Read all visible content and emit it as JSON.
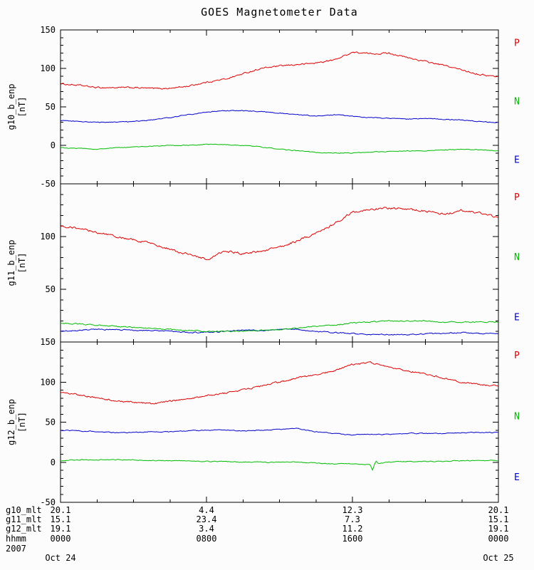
{
  "title": "GOES Magnetometer Data",
  "chart_data": [
    {
      "type": "line",
      "ylabel": "g10_b_enp",
      "yunits": "[nT]",
      "ylim": [
        -50,
        150
      ],
      "ytick_step": 50,
      "ytick_minor_step": 10,
      "ytick_labels": [
        "150",
        "100",
        "50",
        "0",
        "-50"
      ],
      "xlim_hours": [
        0,
        24
      ],
      "xticks_hours": [
        0,
        8,
        16,
        24
      ],
      "legend_position": "right",
      "x_hours": [
        0,
        1,
        2,
        3,
        4,
        5,
        6,
        7,
        8,
        9,
        10,
        11,
        12,
        13,
        14,
        15,
        16,
        17,
        18,
        19,
        20,
        21,
        22,
        23,
        24
      ],
      "series": [
        {
          "name": "P",
          "color": "#dd0000",
          "values": [
            80,
            78,
            75,
            75,
            75,
            74,
            74,
            77,
            82,
            86,
            93,
            100,
            103,
            105,
            107,
            111,
            121,
            119,
            120,
            114,
            109,
            104,
            98,
            92,
            89
          ]
        },
        {
          "name": "N",
          "color": "#00bb00",
          "values": [
            -3,
            -4,
            -5,
            -3,
            -2,
            -1,
            0,
            0,
            1,
            1,
            0,
            -2,
            -5,
            -7,
            -9,
            -10,
            -10,
            -9,
            -8,
            -7,
            -7,
            -6,
            -5,
            -6,
            -7
          ]
        },
        {
          "name": "E",
          "color": "#0000cc",
          "values": [
            32,
            31,
            30,
            30,
            31,
            33,
            36,
            40,
            43,
            45,
            45,
            44,
            42,
            40,
            38,
            40,
            38,
            36,
            35,
            34,
            35,
            34,
            33,
            31,
            30
          ]
        }
      ]
    },
    {
      "type": "line",
      "ylabel": "g11_b_enp",
      "yunits": "[nT]",
      "ylim": [
        0,
        150
      ],
      "ytick_step": 50,
      "ytick_minor_step": 10,
      "ytick_labels": [
        "100",
        "50"
      ],
      "xlim_hours": [
        0,
        24
      ],
      "xticks_hours": [
        0,
        8,
        16,
        24
      ],
      "legend_position": "right",
      "x_hours": [
        0,
        1,
        2,
        3,
        4,
        5,
        6,
        7,
        8,
        9,
        10,
        11,
        12,
        13,
        14,
        15,
        16,
        17,
        18,
        19,
        20,
        21,
        22,
        23,
        24
      ],
      "series": [
        {
          "name": "P",
          "color": "#dd0000",
          "values": [
            110,
            108,
            104,
            100,
            97,
            93,
            88,
            83,
            78,
            86,
            84,
            86,
            90,
            96,
            103,
            112,
            123,
            126,
            127,
            126,
            124,
            121,
            125,
            122,
            118
          ]
        },
        {
          "name": "N",
          "color": "#00bb00",
          "values": [
            18,
            17,
            16,
            15,
            14,
            13,
            12,
            11,
            10,
            10,
            10,
            11,
            12,
            13,
            15,
            16,
            18,
            19,
            20,
            20,
            20,
            19,
            19,
            19,
            19
          ]
        },
        {
          "name": "E",
          "color": "#0000cc",
          "values": [
            10,
            11,
            12,
            12,
            11,
            11,
            10,
            9,
            9,
            10,
            11,
            11,
            12,
            12,
            10,
            9,
            8,
            7,
            7,
            7,
            8,
            8,
            9,
            8,
            8
          ]
        }
      ]
    },
    {
      "type": "line",
      "ylabel": "g12_b_enp",
      "yunits": "[nT]",
      "ylim": [
        -50,
        150
      ],
      "ytick_step": 50,
      "ytick_minor_step": 10,
      "ytick_labels": [
        "150",
        "100",
        "50",
        "0",
        "-50"
      ],
      "xlim_hours": [
        0,
        24
      ],
      "xticks_hours": [
        0,
        8,
        16,
        24
      ],
      "legend_position": "right",
      "x_hours": [
        0,
        1,
        2,
        3,
        4,
        5,
        6,
        7,
        8,
        9,
        10,
        11,
        12,
        13,
        14,
        15,
        16,
        17,
        18,
        19,
        20,
        21,
        22,
        23,
        24
      ],
      "series": [
        {
          "name": "P",
          "color": "#dd0000",
          "values": [
            88,
            84,
            80,
            77,
            75,
            73,
            76,
            79,
            83,
            86,
            90,
            95,
            100,
            105,
            109,
            114,
            122,
            124,
            119,
            114,
            110,
            105,
            100,
            97,
            95
          ]
        },
        {
          "name": "N",
          "color": "#00bb00",
          "values": [
            2,
            3,
            3,
            3,
            3,
            2,
            2,
            2,
            1,
            1,
            0,
            0,
            0,
            0,
            -1,
            -2,
            -2,
            -3,
            0,
            1,
            1,
            1,
            2,
            2,
            2
          ],
          "spikes": [
            {
              "t": 17.1,
              "dv": -7
            },
            {
              "t": 17.3,
              "dv": 3
            }
          ]
        },
        {
          "name": "E",
          "color": "#0000cc",
          "values": [
            40,
            39,
            38,
            37,
            37,
            38,
            38,
            39,
            40,
            40,
            39,
            40,
            41,
            42,
            38,
            36,
            34,
            35,
            35,
            36,
            36,
            36,
            37,
            37,
            37
          ]
        }
      ]
    }
  ],
  "bottom_axis": {
    "tick_hours": [
      0,
      8,
      16,
      24
    ],
    "rows": [
      {
        "label": "g10_mlt",
        "values": [
          "20.1",
          "4.4",
          "12.3",
          "20.1"
        ]
      },
      {
        "label": "g11_mlt",
        "values": [
          "15.1",
          "23.4",
          "7.3",
          "15.1"
        ]
      },
      {
        "label": "g12_mlt",
        "values": [
          "19.1",
          "3.4",
          "11.2",
          "19.1"
        ]
      },
      {
        "label": "hhmm",
        "values": [
          "0000",
          "0800",
          "1600",
          "0000"
        ]
      },
      {
        "label": "2007",
        "values": [
          "Oct 24",
          "",
          "",
          "Oct 25"
        ],
        "date_row": true
      }
    ]
  }
}
